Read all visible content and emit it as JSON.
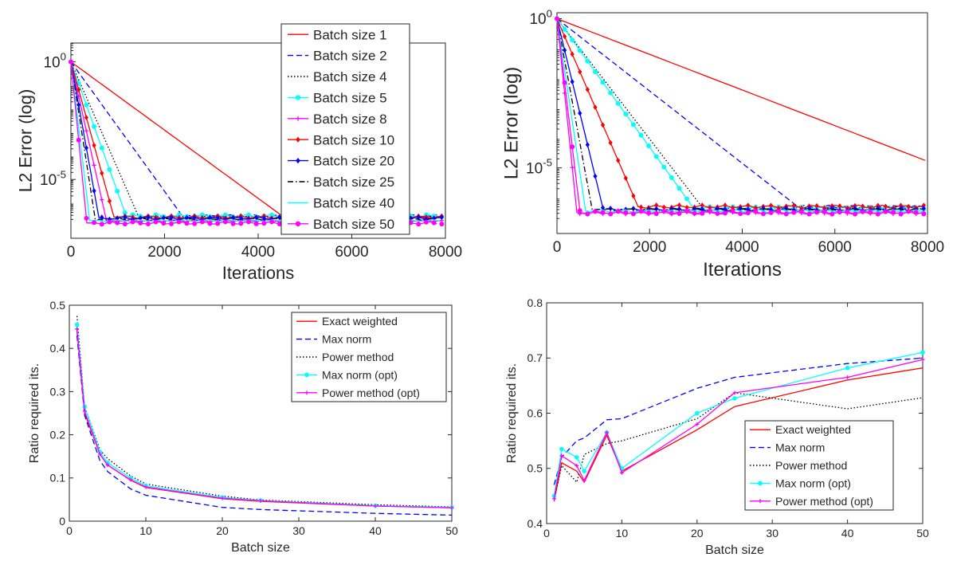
{
  "chart_data": [
    {
      "type": "line",
      "xlabel": "Iterations",
      "ylabel": "L2 Error (log)",
      "xlim": [
        0,
        8000
      ],
      "ylim_log": [
        -7.5,
        0.8
      ],
      "yscale": "log",
      "x_ticks": [
        "0",
        "2000",
        "4000",
        "6000",
        "8000"
      ],
      "y_ticks": [
        {
          "base": "10",
          "exp": "0",
          "value": 1
        },
        {
          "base": "10",
          "exp": "-5",
          "value": 1e-05
        }
      ],
      "legend": "top-right",
      "series": [
        {
          "name": "Batch size 1",
          "color": "#ff0000",
          "style": "solid",
          "marker": "none",
          "conv_iter": 4550,
          "floor_log": -6.6
        },
        {
          "name": "Batch size 2",
          "color": "#0000ff",
          "style": "dashed",
          "marker": "none",
          "conv_iter": 2380,
          "floor_log": -6.55
        },
        {
          "name": "Batch size 4",
          "color": "#000000",
          "style": "dotted",
          "marker": "none",
          "conv_iter": 1450,
          "floor_log": -6.6
        },
        {
          "name": "Batch size 5",
          "color": "#00ffff",
          "style": "solid",
          "marker": "circle",
          "conv_iter": 1180,
          "floor_log": -6.55
        },
        {
          "name": "Batch size 8",
          "color": "#ff00ff",
          "style": "solid",
          "marker": "plus",
          "conv_iter": 760,
          "floor_log": -6.75
        },
        {
          "name": "Batch size 10",
          "color": "#ff0000",
          "style": "solid",
          "marker": "diamond",
          "conv_iter": 920,
          "floor_log": -6.6
        },
        {
          "name": "Batch size 20",
          "color": "#0000ff",
          "style": "solid",
          "marker": "diamond",
          "conv_iter": 600,
          "floor_log": -6.65
        },
        {
          "name": "Batch size 25",
          "color": "#000000",
          "style": "dashdot",
          "marker": "none",
          "conv_iter": 520,
          "floor_log": -6.7
        },
        {
          "name": "Batch size 40",
          "color": "#00ffff",
          "style": "solid",
          "marker": "none",
          "conv_iter": 400,
          "floor_log": -6.75
        },
        {
          "name": "Batch size 50",
          "color": "#ff00ff",
          "style": "solid",
          "marker": "circle",
          "conv_iter": 340,
          "floor_log": -6.85
        }
      ]
    },
    {
      "type": "line",
      "xlabel": "Iterations",
      "ylabel": "L2 Error (log)",
      "xlim": [
        0,
        8000
      ],
      "ylim_log": [
        -7.2,
        0.2
      ],
      "yscale": "log",
      "x_ticks": [
        "0",
        "2000",
        "4000",
        "6000",
        "8000"
      ],
      "y_ticks": [
        {
          "base": "10",
          "exp": "0",
          "value": 1
        },
        {
          "base": "10",
          "exp": "-5",
          "value": 1e-05
        }
      ],
      "series": [
        {
          "name": "Batch size 1",
          "color": "#ff0000",
          "style": "solid",
          "marker": "none",
          "conv_iter": 7950,
          "end_log": -4.75
        },
        {
          "name": "Batch size 2",
          "color": "#0000ff",
          "style": "dashed",
          "marker": "none",
          "conv_iter": 5200,
          "floor_log": -6.3
        },
        {
          "name": "Batch size 4",
          "color": "#000000",
          "style": "dotted",
          "marker": "none",
          "conv_iter": 3150,
          "floor_log": -6.35
        },
        {
          "name": "Batch size 5",
          "color": "#00ffff",
          "style": "solid",
          "marker": "circle",
          "conv_iter": 2950,
          "floor_log": -6.35
        },
        {
          "name": "Batch size 8",
          "color": "#ff00ff",
          "style": "solid",
          "marker": "plus",
          "conv_iter": 430,
          "floor_log": -6.5
        },
        {
          "name": "Batch size 10",
          "color": "#ff0000",
          "style": "solid",
          "marker": "diamond",
          "conv_iter": 1750,
          "floor_log": -6.3
        },
        {
          "name": "Batch size 20",
          "color": "#0000ff",
          "style": "solid",
          "marker": "diamond",
          "conv_iter": 1000,
          "floor_log": -6.4
        },
        {
          "name": "Batch size 25",
          "color": "#000000",
          "style": "dashdot",
          "marker": "none",
          "conv_iter": 760,
          "floor_log": -6.4
        },
        {
          "name": "Batch size 40",
          "color": "#00ffff",
          "style": "solid",
          "marker": "none",
          "conv_iter": 620,
          "floor_log": -6.45
        },
        {
          "name": "Batch size 50",
          "color": "#ff00ff",
          "style": "solid",
          "marker": "circle",
          "conv_iter": 500,
          "floor_log": -6.5
        }
      ]
    },
    {
      "type": "line",
      "xlabel": "Batch size",
      "ylabel": "Ratio required its.",
      "xlim": [
        0,
        50
      ],
      "ylim": [
        0,
        0.5
      ],
      "x_ticks": [
        0,
        10,
        20,
        30,
        40,
        50
      ],
      "y_ticks": [
        0,
        0.1,
        0.2,
        0.3,
        0.4,
        0.5
      ],
      "legend": "top-right",
      "x": [
        1,
        2,
        4,
        5,
        8,
        10,
        20,
        25,
        40,
        50
      ],
      "series": [
        {
          "name": "Exact weighted",
          "color": "#ff0000",
          "style": "solid",
          "marker": "none",
          "values": [
            0.44,
            0.25,
            0.155,
            0.13,
            0.095,
            0.078,
            0.052,
            0.046,
            0.035,
            0.031
          ]
        },
        {
          "name": "Max norm",
          "color": "#0000ff",
          "style": "dashed",
          "marker": "none",
          "values": [
            0.43,
            0.245,
            0.14,
            0.115,
            0.075,
            0.06,
            0.032,
            0.027,
            0.018,
            0.014
          ]
        },
        {
          "name": "Power method",
          "color": "#000000",
          "style": "dotted",
          "marker": "none",
          "values": [
            0.475,
            0.265,
            0.165,
            0.145,
            0.105,
            0.086,
            0.058,
            0.049,
            0.038,
            0.033
          ]
        },
        {
          "name": "Max norm (opt)",
          "color": "#00ffff",
          "style": "solid",
          "marker": "circle",
          "values": [
            0.455,
            0.265,
            0.16,
            0.135,
            0.1,
            0.082,
            0.055,
            0.048,
            0.036,
            0.032
          ]
        },
        {
          "name": "Power method (opt)",
          "color": "#ff00ff",
          "style": "solid",
          "marker": "plus",
          "values": [
            0.445,
            0.255,
            0.155,
            0.13,
            0.096,
            0.079,
            0.053,
            0.047,
            0.035,
            0.031
          ]
        }
      ]
    },
    {
      "type": "line",
      "xlabel": "Batch size",
      "ylabel": "Ratio required its.",
      "xlim": [
        0,
        50
      ],
      "ylim": [
        0.4,
        0.8
      ],
      "x_ticks": [
        0,
        10,
        20,
        30,
        40,
        50
      ],
      "y_ticks": [
        0.4,
        0.5,
        0.6,
        0.7,
        0.8
      ],
      "legend": "bottom-right",
      "x": [
        1,
        2,
        4,
        5,
        8,
        10,
        20,
        25,
        40,
        50
      ],
      "series": [
        {
          "name": "Exact weighted",
          "color": "#ff0000",
          "style": "solid",
          "marker": "none",
          "values": [
            0.44,
            0.51,
            0.495,
            0.475,
            0.56,
            0.495,
            0.57,
            0.612,
            0.66,
            0.682
          ]
        },
        {
          "name": "Max norm",
          "color": "#0000ff",
          "style": "dashed",
          "marker": "none",
          "values": [
            0.47,
            0.52,
            0.55,
            0.555,
            0.588,
            0.59,
            0.645,
            0.665,
            0.69,
            0.7
          ]
        },
        {
          "name": "Power method",
          "color": "#000000",
          "style": "dotted",
          "marker": "none",
          "values": [
            0.445,
            0.505,
            0.475,
            0.525,
            0.545,
            0.55,
            0.59,
            0.637,
            0.608,
            0.628
          ]
        },
        {
          "name": "Max norm (opt)",
          "color": "#00ffff",
          "style": "solid",
          "marker": "circle",
          "values": [
            0.45,
            0.535,
            0.52,
            0.495,
            0.565,
            0.5,
            0.6,
            0.627,
            0.682,
            0.71
          ]
        },
        {
          "name": "Power method (opt)",
          "color": "#ff00ff",
          "style": "solid",
          "marker": "plus",
          "values": [
            0.445,
            0.523,
            0.505,
            0.478,
            0.565,
            0.492,
            0.58,
            0.637,
            0.665,
            0.697
          ]
        }
      ]
    }
  ]
}
